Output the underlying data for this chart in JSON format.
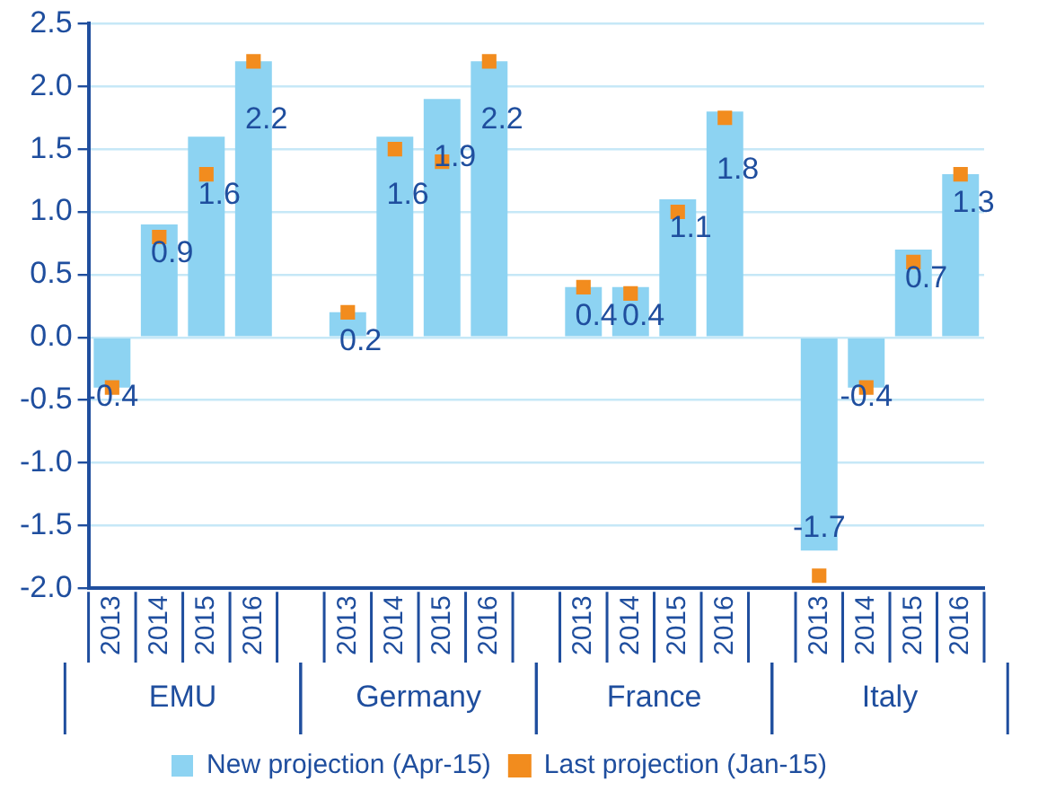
{
  "chart_data": {
    "type": "bar",
    "categories": [
      "2013",
      "2014",
      "2015",
      "2016",
      null,
      "2013",
      "2014",
      "2015",
      "2016",
      null,
      "2013",
      "2014",
      "2015",
      "2016",
      null,
      "2013",
      "2014",
      "2015",
      "2016"
    ],
    "series": [
      {
        "name": "New projection (Apr-15)",
        "color": "#8dd3f2",
        "values": [
          -0.4,
          0.9,
          1.6,
          2.2,
          null,
          0.2,
          1.6,
          1.9,
          2.2,
          null,
          0.4,
          0.4,
          1.1,
          1.8,
          null,
          -1.7,
          -0.4,
          0.7,
          1.3
        ],
        "value_labels": [
          "-0.4",
          "0.9",
          "1.6",
          "2.2",
          null,
          "0.2",
          "1.6",
          "1.9",
          "2.2",
          null,
          "0.4",
          "0.4",
          "1.1",
          "1.8",
          null,
          "-1.7",
          "-0.4",
          "0.7",
          "1.3"
        ]
      },
      {
        "name": "Last projection (Jan-15)",
        "type": "scatter",
        "marker": "square",
        "color": "#f28c1e",
        "values": [
          -0.4,
          0.8,
          1.3,
          2.2,
          null,
          0.2,
          1.5,
          1.4,
          2.2,
          null,
          0.4,
          0.35,
          1.0,
          1.75,
          null,
          -1.9,
          -0.4,
          0.6,
          1.3
        ]
      }
    ],
    "annotations": [
      "EMU",
      "Germany",
      "France",
      "Italy"
    ],
    "ylim": [
      -2,
      2.5
    ],
    "yticks": [
      {
        "value": -2,
        "label": "-2.0"
      },
      {
        "value": -1.5,
        "label": "-1.5"
      },
      {
        "value": -1,
        "label": "-1.0"
      },
      {
        "value": -0.5,
        "label": "-0.5"
      },
      {
        "value": 0,
        "label": "0.0"
      },
      {
        "value": 0.5,
        "label": "0.5"
      },
      {
        "value": 1,
        "label": "1.0"
      },
      {
        "value": 1.5,
        "label": "1.5"
      },
      {
        "value": 2,
        "label": "2.0"
      },
      {
        "value": 2.5,
        "label": "2.5"
      }
    ],
    "grid": "y",
    "legend": "bottom"
  }
}
